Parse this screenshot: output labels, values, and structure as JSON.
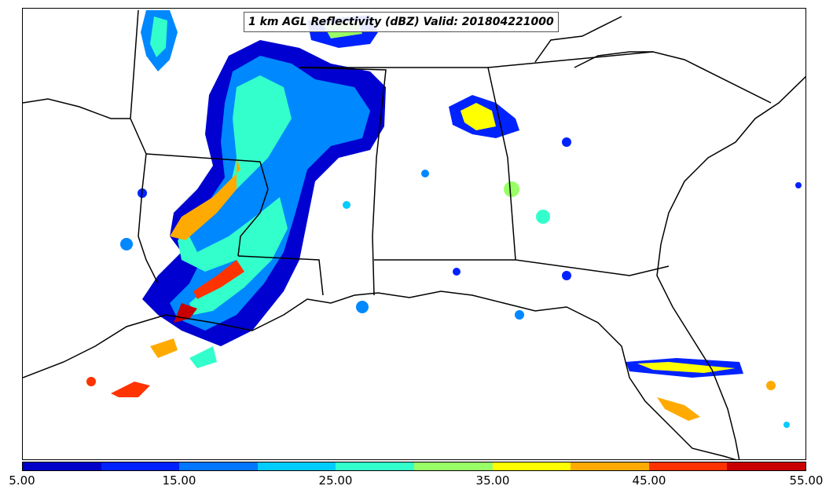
{
  "title": "1 km AGL Reflectivity (dBZ) Valid: 201804221000",
  "colorbar": {
    "colors": [
      "#0000c8",
      "#0022ff",
      "#0077ff",
      "#00ccff",
      "#33ffcc",
      "#99ff66",
      "#ffff00",
      "#ffaa00",
      "#ff3300",
      "#c80000"
    ],
    "tick_labels": [
      "5.00",
      "15.00",
      "25.00",
      "35.00",
      "45.00",
      "55.00"
    ],
    "min": 5,
    "max": 55
  },
  "map": {
    "region": "Southeastern United States",
    "field": "1 km AGL radar reflectivity",
    "units": "dBZ"
  }
}
